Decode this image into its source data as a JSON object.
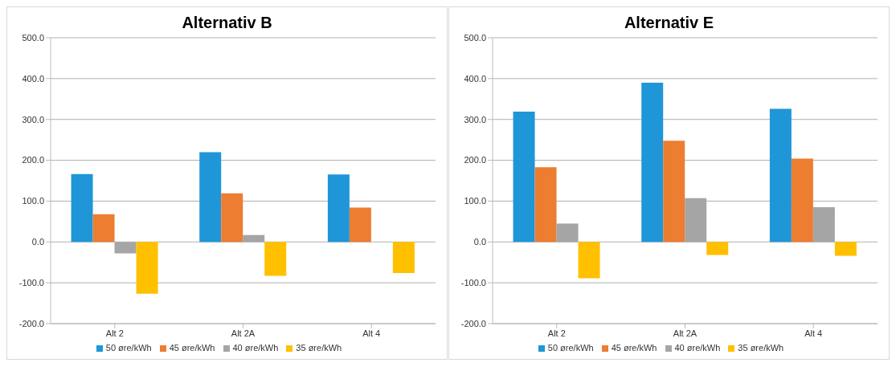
{
  "chart_data": [
    {
      "type": "bar",
      "title": "Alternativ B",
      "categories": [
        "Alt 2",
        "Alt 2A",
        "Alt 4"
      ],
      "series": [
        {
          "name": "50 øre/kWh",
          "color": "#1f96d8",
          "values": [
            166,
            220,
            165
          ]
        },
        {
          "name": "45 øre/kWh",
          "color": "#ed7d31",
          "values": [
            68,
            119,
            84
          ]
        },
        {
          "name": "40 øre/kWh",
          "color": "#a5a5a5",
          "values": [
            -28,
            17,
            null
          ]
        },
        {
          "name": "35 øre/kWh",
          "color": "#ffc000",
          "values": [
            -127,
            -83,
            -76
          ]
        }
      ],
      "ylim": [
        -200,
        500
      ],
      "yticks": [
        {
          "value": -200,
          "label": "-200.0"
        },
        {
          "value": -100,
          "label": "-100.0"
        },
        {
          "value": 0,
          "label": "0.0"
        },
        {
          "value": 100,
          "label": "100.0"
        },
        {
          "value": 200,
          "label": "200.0"
        },
        {
          "value": 300,
          "label": "300.0"
        },
        {
          "value": 400,
          "label": "400.0"
        },
        {
          "value": 500,
          "label": "500.0"
        }
      ],
      "grid": "y",
      "legend": "bottom"
    },
    {
      "type": "bar",
      "title": "Alternativ E",
      "categories": [
        "Alt 2",
        "Alt 2A",
        "Alt 4"
      ],
      "series": [
        {
          "name": "50 øre/kWh",
          "color": "#1f96d8",
          "values": [
            319,
            390,
            326
          ]
        },
        {
          "name": "45 øre/kWh",
          "color": "#ed7d31",
          "values": [
            183,
            248,
            204
          ]
        },
        {
          "name": "40 øre/kWh",
          "color": "#a5a5a5",
          "values": [
            45,
            107,
            85
          ]
        },
        {
          "name": "35 øre/kWh",
          "color": "#ffc000",
          "values": [
            -89,
            -32,
            -34
          ]
        }
      ],
      "ylim": [
        -200,
        500
      ],
      "yticks": [
        {
          "value": -200,
          "label": "-200.0"
        },
        {
          "value": -100,
          "label": "-100.0"
        },
        {
          "value": 0,
          "label": "0.0"
        },
        {
          "value": 100,
          "label": "100.0"
        },
        {
          "value": 200,
          "label": "200.0"
        },
        {
          "value": 300,
          "label": "300.0"
        },
        {
          "value": 400,
          "label": "400.0"
        },
        {
          "value": 500,
          "label": "500.0"
        }
      ],
      "grid": "y",
      "legend": "bottom"
    }
  ]
}
